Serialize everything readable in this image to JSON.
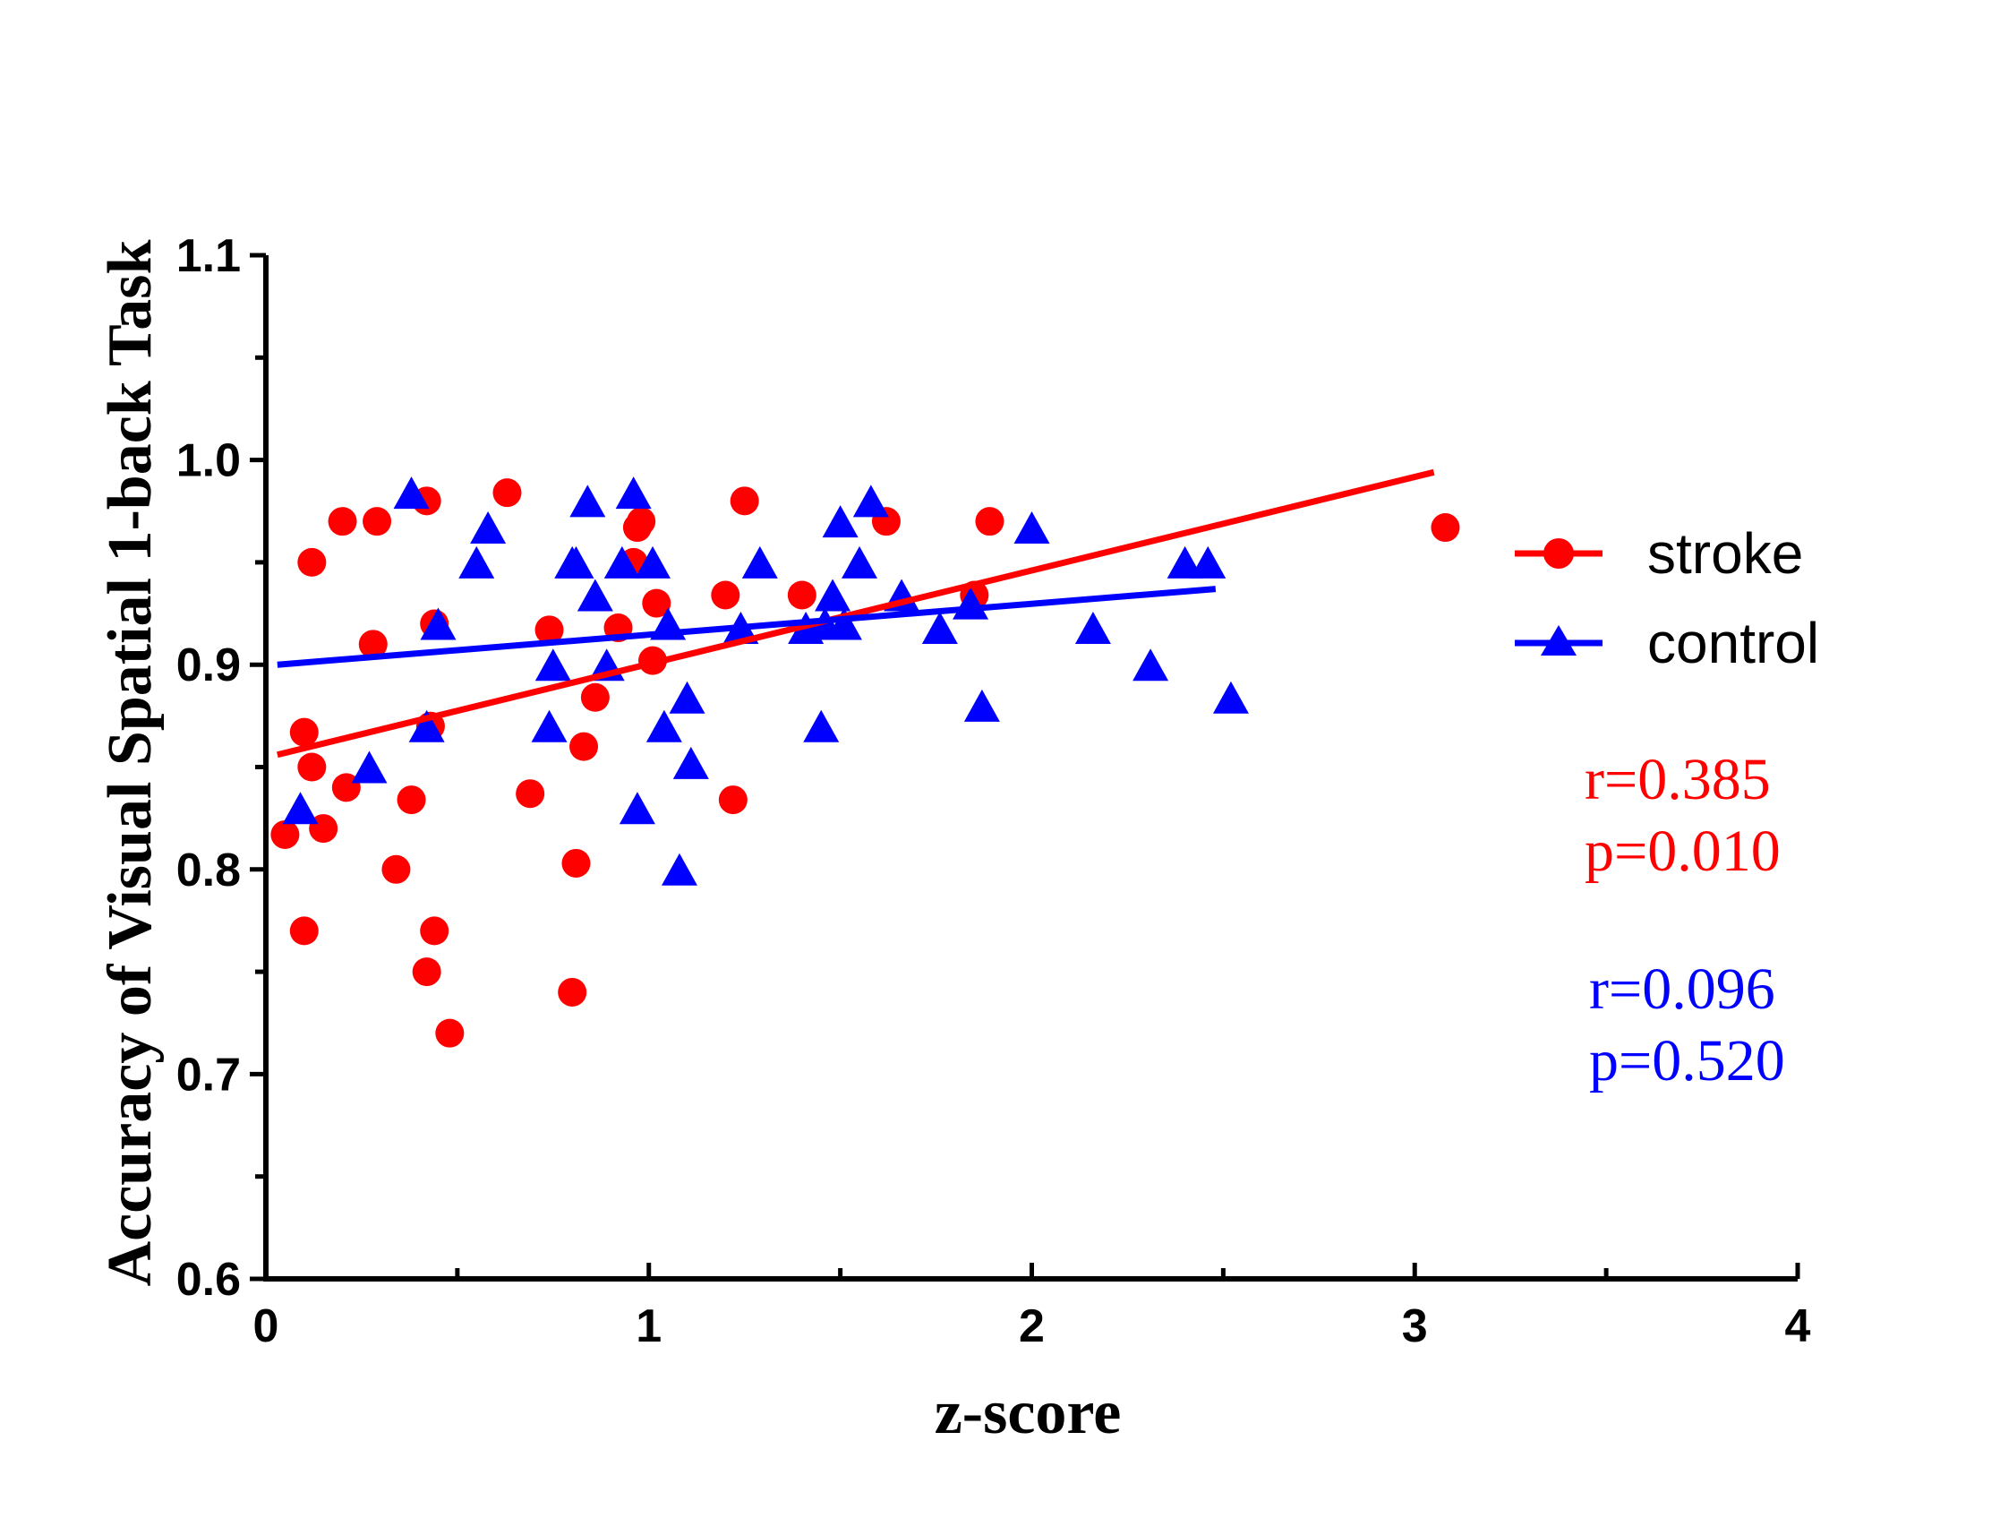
{
  "chart_data": {
    "type": "scatter",
    "title": "",
    "xlabel": "z-score",
    "ylabel": "Accuracy of Visual Spatial 1-back Task",
    "xlim": [
      0,
      4
    ],
    "ylim": [
      0.6,
      1.1
    ],
    "x_ticks": [
      "0",
      "1",
      "2",
      "3",
      "4"
    ],
    "y_ticks": [
      "0.6",
      "0.7",
      "0.8",
      "0.9",
      "1.0",
      "1.1"
    ],
    "legend_position": "right",
    "series": [
      {
        "name": "stroke",
        "color": "#ff0000",
        "marker": "circle",
        "points": [
          [
            0.05,
            0.817
          ],
          [
            0.1,
            0.77
          ],
          [
            0.1,
            0.867
          ],
          [
            0.12,
            0.85
          ],
          [
            0.12,
            0.95
          ],
          [
            0.15,
            0.82
          ],
          [
            0.2,
            0.97
          ],
          [
            0.21,
            0.84
          ],
          [
            0.28,
            0.91
          ],
          [
            0.29,
            0.97
          ],
          [
            0.34,
            0.8
          ],
          [
            0.38,
            0.834
          ],
          [
            0.42,
            0.98
          ],
          [
            0.42,
            0.75
          ],
          [
            0.43,
            0.87
          ],
          [
            0.44,
            0.92
          ],
          [
            0.44,
            0.77
          ],
          [
            0.48,
            0.72
          ],
          [
            0.63,
            0.984
          ],
          [
            0.69,
            0.837
          ],
          [
            0.74,
            0.917
          ],
          [
            0.8,
            0.74
          ],
          [
            0.81,
            0.803
          ],
          [
            0.83,
            0.86
          ],
          [
            0.86,
            0.884
          ],
          [
            0.92,
            0.918
          ],
          [
            0.96,
            0.95
          ],
          [
            0.97,
            0.967
          ],
          [
            0.98,
            0.97
          ],
          [
            1.01,
            0.902
          ],
          [
            1.02,
            0.93
          ],
          [
            1.2,
            0.934
          ],
          [
            1.22,
            0.834
          ],
          [
            1.25,
            0.98
          ],
          [
            1.4,
            0.934
          ],
          [
            1.62,
            0.97
          ],
          [
            1.85,
            0.934
          ],
          [
            1.89,
            0.97
          ],
          [
            3.08,
            0.967
          ]
        ],
        "fit_line": {
          "x": [
            0.03,
            3.05
          ],
          "y": [
            0.856,
            0.994
          ]
        },
        "stats": {
          "r": "r=0.385",
          "p": "p=0.010"
        }
      },
      {
        "name": "control",
        "color": "#0000ff",
        "marker": "triangle",
        "points": [
          [
            0.09,
            0.83
          ],
          [
            0.27,
            0.85
          ],
          [
            0.38,
            0.984
          ],
          [
            0.42,
            0.87
          ],
          [
            0.45,
            0.92
          ],
          [
            0.55,
            0.95
          ],
          [
            0.58,
            0.967
          ],
          [
            0.74,
            0.87
          ],
          [
            0.75,
            0.9
          ],
          [
            0.8,
            0.95
          ],
          [
            0.81,
            0.95
          ],
          [
            0.84,
            0.98
          ],
          [
            0.86,
            0.934
          ],
          [
            0.89,
            0.9
          ],
          [
            0.93,
            0.95
          ],
          [
            0.96,
            0.984
          ],
          [
            0.97,
            0.83
          ],
          [
            1.01,
            0.95
          ],
          [
            1.04,
            0.87
          ],
          [
            1.05,
            0.92
          ],
          [
            1.08,
            0.8
          ],
          [
            1.1,
            0.884
          ],
          [
            1.11,
            0.852
          ],
          [
            1.24,
            0.918
          ],
          [
            1.29,
            0.95
          ],
          [
            1.41,
            0.918
          ],
          [
            1.45,
            0.87
          ],
          [
            1.46,
            0.92
          ],
          [
            1.48,
            0.934
          ],
          [
            1.5,
            0.97
          ],
          [
            1.51,
            0.92
          ],
          [
            1.55,
            0.95
          ],
          [
            1.58,
            0.98
          ],
          [
            1.66,
            0.934
          ],
          [
            1.76,
            0.918
          ],
          [
            1.84,
            0.93
          ],
          [
            1.87,
            0.88
          ],
          [
            2.0,
            0.967
          ],
          [
            2.16,
            0.918
          ],
          [
            2.31,
            0.9
          ],
          [
            2.4,
            0.95
          ],
          [
            2.46,
            0.95
          ],
          [
            2.52,
            0.884
          ]
        ],
        "fit_line": {
          "x": [
            0.03,
            2.48
          ],
          "y": [
            0.9,
            0.937
          ]
        },
        "stats": {
          "r": "r=0.096",
          "p": "p=0.520"
        }
      }
    ]
  }
}
